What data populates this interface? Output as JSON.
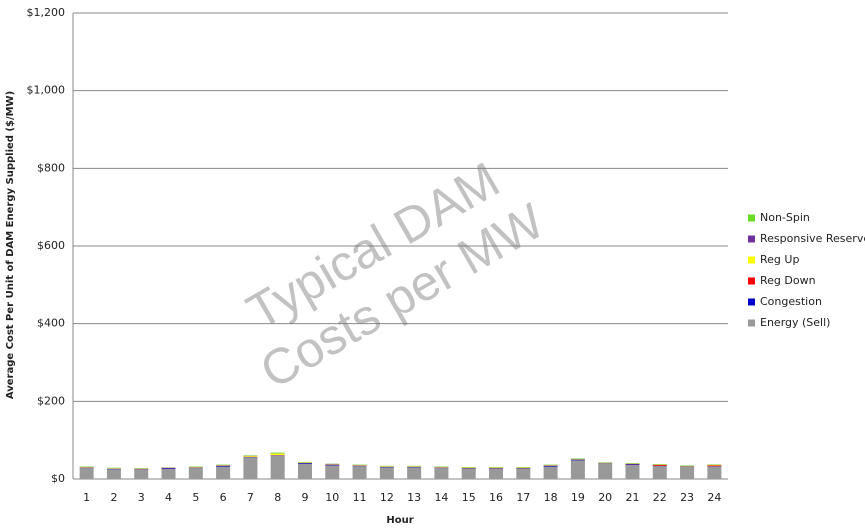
{
  "chart_data": {
    "type": "stacked-bar",
    "y_label": "Average Cost Per Unit of DAM Energy Supplied ($/MW)",
    "x_label": "Hour",
    "watermark": [
      "Typical DAM",
      "Costs per MW"
    ],
    "categories": [
      "1",
      "2",
      "3",
      "4",
      "5",
      "6",
      "7",
      "8",
      "9",
      "10",
      "11",
      "12",
      "13",
      "14",
      "15",
      "16",
      "17",
      "18",
      "19",
      "20",
      "21",
      "22",
      "23",
      "24"
    ],
    "series": [
      {
        "name": "Energy (Sell)",
        "color": "#999999",
        "values": [
          28,
          25,
          24,
          26,
          28,
          32,
          56,
          60,
          39,
          35,
          33,
          30,
          30,
          28,
          27,
          27,
          27,
          32,
          48,
          39,
          36,
          33,
          31,
          32
        ]
      },
      {
        "name": "Congestion",
        "color": "#0000cc",
        "values": [
          1,
          1,
          1,
          2,
          1,
          2,
          1,
          1,
          2,
          2,
          1,
          1,
          1,
          1,
          1,
          1,
          1,
          2,
          2,
          1,
          2,
          1,
          1,
          1
        ]
      },
      {
        "name": "Reg Down",
        "color": "#ff0000",
        "values": [
          0.5,
          0.5,
          0.5,
          0.5,
          0.5,
          0.5,
          0.5,
          0.5,
          0.5,
          0.5,
          0.5,
          0.5,
          0.5,
          0.5,
          0.5,
          0.5,
          0.5,
          0.5,
          0.5,
          0.5,
          0.5,
          2,
          0.5,
          2
        ]
      },
      {
        "name": "Reg Up",
        "color": "#ffff00",
        "values": [
          1,
          1,
          1,
          0.5,
          1,
          1,
          2,
          4,
          1,
          1,
          1,
          1,
          1,
          1,
          1,
          1,
          1,
          1,
          1,
          1,
          1,
          1,
          1,
          1
        ]
      },
      {
        "name": "Responsive Reserve",
        "color": "#7030a0",
        "values": [
          0.5,
          0.5,
          0.5,
          0.5,
          0.5,
          0.5,
          0.5,
          0.5,
          0.5,
          0.5,
          0.5,
          0.5,
          0.5,
          0.5,
          0.5,
          0.5,
          0.5,
          0.5,
          0.5,
          0.5,
          0.5,
          0.5,
          0.5,
          0.5
        ]
      },
      {
        "name": "Non-Spin",
        "color": "#66dd22",
        "values": [
          1,
          1,
          1,
          0.5,
          1,
          1,
          1,
          2,
          1,
          0.5,
          1,
          1,
          1,
          1,
          1,
          1,
          1,
          1,
          1,
          1,
          1,
          1,
          1,
          1
        ]
      }
    ],
    "ylim": [
      0,
      1200
    ],
    "yticks": [
      {
        "value": 0,
        "label": "$0"
      },
      {
        "value": 200,
        "label": "$200"
      },
      {
        "value": 400,
        "label": "$400"
      },
      {
        "value": 600,
        "label": "$600"
      },
      {
        "value": 800,
        "label": "$800"
      },
      {
        "value": 1000,
        "label": "$1,000"
      },
      {
        "value": 1200,
        "label": "$1,200"
      }
    ],
    "grid": true,
    "legend": "right"
  }
}
